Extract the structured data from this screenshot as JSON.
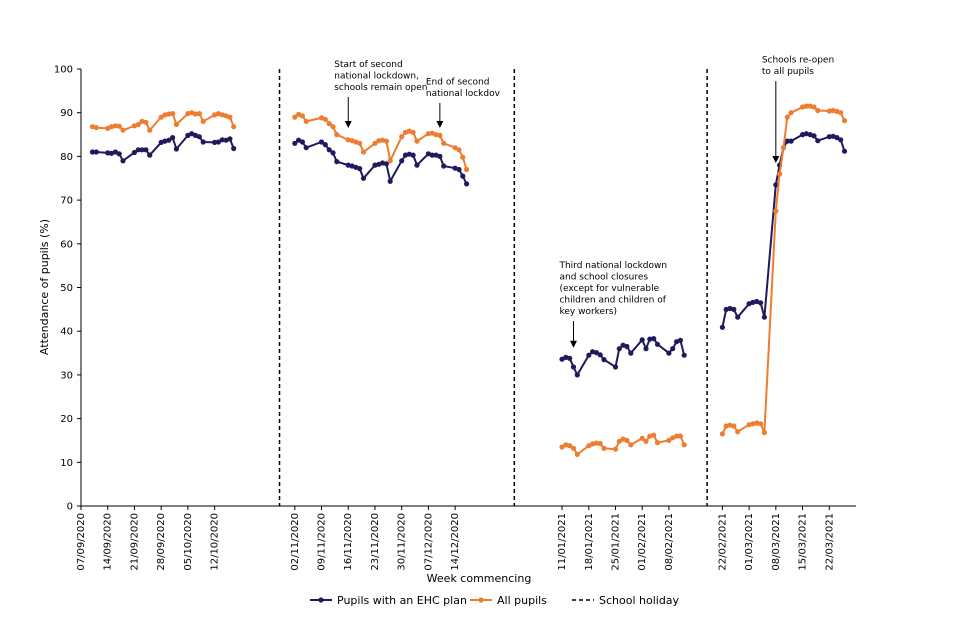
{
  "chart_data": {
    "type": "line",
    "xlabel": "Week commencing",
    "ylabel": "Attendance of pupils (%)",
    "ylim": [
      0,
      100
    ],
    "yticks": [
      0,
      10,
      20,
      30,
      40,
      50,
      60,
      70,
      80,
      90,
      100
    ],
    "x_start_date": "07/09/2020",
    "x_end_date": "29/03/2021",
    "xtick_labels": [
      "07/09/2020",
      "14/09/2020",
      "21/09/2020",
      "28/09/2020",
      "05/10/2020",
      "12/10/2020",
      "02/11/2020",
      "09/11/2020",
      "16/11/2020",
      "23/11/2020",
      "30/11/2020",
      "07/12/2020",
      "14/12/2020",
      "11/01/2021",
      "18/01/2021",
      "25/01/2021",
      "01/02/2021",
      "08/02/2021",
      "22/02/2021",
      "01/03/2021",
      "08/03/2021",
      "15/03/2021",
      "22/03/2021"
    ],
    "legend_position": "bottom",
    "grid": false,
    "colors": {
      "ehc": "#1f1a5e",
      "all": "#ee7d31",
      "holiday": "#000000"
    },
    "legend": [
      {
        "key": "ehc",
        "label": "Pupils with an EHC plan"
      },
      {
        "key": "all",
        "label": "All pupils"
      },
      {
        "key": "holiday",
        "label": "School holiday"
      }
    ],
    "school_holidays": [
      "26/10/2020 - 01/11/2020",
      "18/12/2020 - 10/01/2021",
      "15/02/2021 - 21/02/2021"
    ],
    "series": [
      {
        "name": "Pupils with an EHC plan",
        "key": "ehc",
        "segments": [
          [
            [
              "10/09/2020",
              81.0
            ],
            [
              "11/09/2020",
              81.0
            ],
            [
              "14/09/2020",
              80.8
            ],
            [
              "15/09/2020",
              80.7
            ],
            [
              "16/09/2020",
              81.0
            ],
            [
              "17/09/2020",
              80.6
            ],
            [
              "18/09/2020",
              79.0
            ],
            [
              "21/09/2020",
              80.9
            ],
            [
              "22/09/2020",
              81.5
            ],
            [
              "23/09/2020",
              81.5
            ],
            [
              "24/09/2020",
              81.5
            ],
            [
              "25/09/2020",
              80.3
            ],
            [
              "28/09/2020",
              83.2
            ],
            [
              "29/09/2020",
              83.5
            ],
            [
              "30/09/2020",
              83.7
            ],
            [
              "01/10/2020",
              84.3
            ],
            [
              "02/10/2020",
              81.7
            ],
            [
              "05/10/2020",
              84.8
            ],
            [
              "06/10/2020",
              85.2
            ],
            [
              "07/10/2020",
              84.8
            ],
            [
              "08/10/2020",
              84.5
            ],
            [
              "09/10/2020",
              83.3
            ],
            [
              "12/10/2020",
              83.2
            ],
            [
              "13/10/2020",
              83.3
            ],
            [
              "14/10/2020",
              83.8
            ],
            [
              "15/10/2020",
              83.7
            ],
            [
              "16/10/2020",
              84.0
            ],
            [
              "17/10/2020",
              81.8
            ]
          ],
          [
            [
              "02/11/2020",
              83.0
            ],
            [
              "03/11/2020",
              83.7
            ],
            [
              "04/11/2020",
              83.3
            ],
            [
              "05/11/2020",
              82.0
            ],
            [
              "09/11/2020",
              83.3
            ],
            [
              "10/11/2020",
              82.7
            ],
            [
              "11/11/2020",
              81.5
            ],
            [
              "12/11/2020",
              80.8
            ],
            [
              "13/11/2020",
              78.8
            ],
            [
              "16/11/2020",
              78.0
            ],
            [
              "17/11/2020",
              77.8
            ],
            [
              "18/11/2020",
              77.5
            ],
            [
              "19/11/2020",
              77.2
            ],
            [
              "20/11/2020",
              75.0
            ],
            [
              "23/11/2020",
              78.0
            ],
            [
              "24/11/2020",
              78.2
            ],
            [
              "25/11/2020",
              78.5
            ],
            [
              "26/11/2020",
              78.3
            ],
            [
              "27/11/2020",
              74.3
            ],
            [
              "30/11/2020",
              79.0
            ],
            [
              "01/12/2020",
              80.3
            ],
            [
              "02/12/2020",
              80.5
            ],
            [
              "03/12/2020",
              80.3
            ],
            [
              "04/12/2020",
              78.0
            ],
            [
              "07/12/2020",
              80.6
            ],
            [
              "08/12/2020",
              80.3
            ],
            [
              "09/12/2020",
              80.3
            ],
            [
              "10/12/2020",
              80.0
            ],
            [
              "11/12/2020",
              77.8
            ],
            [
              "14/12/2020",
              77.3
            ],
            [
              "15/12/2020",
              77.0
            ],
            [
              "16/12/2020",
              75.5
            ],
            [
              "17/12/2020",
              73.7
            ]
          ],
          [
            [
              "11/01/2021",
              33.6
            ],
            [
              "12/01/2021",
              34.0
            ],
            [
              "13/01/2021",
              33.8
            ],
            [
              "14/01/2021",
              31.8
            ],
            [
              "15/01/2021",
              30.0
            ],
            [
              "18/01/2021",
              34.5
            ],
            [
              "19/01/2021",
              35.3
            ],
            [
              "20/01/2021",
              35.1
            ],
            [
              "21/01/2021",
              34.6
            ],
            [
              "22/01/2021",
              33.5
            ],
            [
              "25/01/2021",
              31.8
            ],
            [
              "26/01/2021",
              36.0
            ],
            [
              "27/01/2021",
              36.8
            ],
            [
              "28/01/2021",
              36.5
            ],
            [
              "29/01/2021",
              35.0
            ],
            [
              "01/02/2021",
              38.0
            ],
            [
              "02/02/2021",
              36.0
            ],
            [
              "03/02/2021",
              38.2
            ],
            [
              "04/02/2021",
              38.3
            ],
            [
              "05/02/2021",
              37.0
            ],
            [
              "08/02/2021",
              35.0
            ],
            [
              "09/02/2021",
              36.0
            ],
            [
              "10/02/2021",
              37.6
            ],
            [
              "11/02/2021",
              37.9
            ],
            [
              "12/02/2021",
              34.5
            ]
          ],
          [
            [
              "22/02/2021",
              40.9
            ],
            [
              "23/02/2021",
              45.0
            ],
            [
              "24/02/2021",
              45.2
            ],
            [
              "25/02/2021",
              45.0
            ],
            [
              "26/02/2021",
              43.2
            ],
            [
              "01/03/2021",
              46.3
            ],
            [
              "02/03/2021",
              46.6
            ],
            [
              "03/03/2021",
              46.8
            ],
            [
              "04/03/2021",
              46.5
            ],
            [
              "05/03/2021",
              43.2
            ],
            [
              "08/03/2021",
              73.5
            ],
            [
              "09/03/2021",
              78.0
            ],
            [
              "10/03/2021",
              82.0
            ],
            [
              "11/03/2021",
              83.5
            ],
            [
              "12/03/2021",
              83.5
            ],
            [
              "15/03/2021",
              85.0
            ],
            [
              "16/03/2021",
              85.2
            ],
            [
              "17/03/2021",
              85.0
            ],
            [
              "18/03/2021",
              84.7
            ],
            [
              "19/03/2021",
              83.6
            ],
            [
              "22/03/2021",
              84.5
            ],
            [
              "23/03/2021",
              84.6
            ],
            [
              "24/03/2021",
              84.3
            ],
            [
              "25/03/2021",
              83.8
            ],
            [
              "26/03/2021",
              81.2
            ]
          ]
        ]
      },
      {
        "name": "All pupils",
        "key": "all",
        "segments": [
          [
            [
              "10/09/2020",
              86.8
            ],
            [
              "11/09/2020",
              86.6
            ],
            [
              "14/09/2020",
              86.4
            ],
            [
              "15/09/2020",
              86.8
            ],
            [
              "16/09/2020",
              87.0
            ],
            [
              "17/09/2020",
              86.9
            ],
            [
              "18/09/2020",
              86.0
            ],
            [
              "21/09/2020",
              87.0
            ],
            [
              "22/09/2020",
              87.3
            ],
            [
              "23/09/2020",
              88.0
            ],
            [
              "24/09/2020",
              87.8
            ],
            [
              "25/09/2020",
              86.0
            ],
            [
              "28/09/2020",
              89.0
            ],
            [
              "29/09/2020",
              89.5
            ],
            [
              "30/09/2020",
              89.7
            ],
            [
              "01/10/2020",
              89.8
            ],
            [
              "02/10/2020",
              87.3
            ],
            [
              "05/10/2020",
              89.8
            ],
            [
              "06/10/2020",
              90.0
            ],
            [
              "07/10/2020",
              89.7
            ],
            [
              "08/10/2020",
              89.8
            ],
            [
              "09/10/2020",
              88.0
            ],
            [
              "12/10/2020",
              89.5
            ],
            [
              "13/10/2020",
              89.8
            ],
            [
              "14/10/2020",
              89.5
            ],
            [
              "15/10/2020",
              89.3
            ],
            [
              "16/10/2020",
              89.0
            ],
            [
              "17/10/2020",
              86.8
            ]
          ],
          [
            [
              "02/11/2020",
              89.0
            ],
            [
              "03/11/2020",
              89.6
            ],
            [
              "04/11/2020",
              89.3
            ],
            [
              "05/11/2020",
              88.0
            ],
            [
              "09/11/2020",
              88.8
            ],
            [
              "10/11/2020",
              88.5
            ],
            [
              "11/11/2020",
              87.5
            ],
            [
              "12/11/2020",
              86.8
            ],
            [
              "13/11/2020",
              85.0
            ],
            [
              "16/11/2020",
              83.8
            ],
            [
              "17/11/2020",
              83.6
            ],
            [
              "18/11/2020",
              83.3
            ],
            [
              "19/11/2020",
              83.0
            ],
            [
              "20/11/2020",
              81.0
            ],
            [
              "23/11/2020",
              83.0
            ],
            [
              "24/11/2020",
              83.6
            ],
            [
              "25/11/2020",
              83.7
            ],
            [
              "26/11/2020",
              83.5
            ],
            [
              "27/11/2020",
              79.0
            ],
            [
              "30/11/2020",
              84.5
            ],
            [
              "01/12/2020",
              85.5
            ],
            [
              "02/12/2020",
              85.8
            ],
            [
              "03/12/2020",
              85.5
            ],
            [
              "04/12/2020",
              83.5
            ],
            [
              "07/12/2020",
              85.2
            ],
            [
              "08/12/2020",
              85.3
            ],
            [
              "09/12/2020",
              85.0
            ],
            [
              "10/12/2020",
              84.8
            ],
            [
              "11/12/2020",
              83.0
            ],
            [
              "14/12/2020",
              82.0
            ],
            [
              "15/12/2020",
              81.5
            ],
            [
              "16/12/2020",
              79.8
            ],
            [
              "17/12/2020",
              77.0
            ]
          ],
          [
            [
              "11/01/2021",
              13.5
            ],
            [
              "12/01/2021",
              14.0
            ],
            [
              "13/01/2021",
              13.8
            ],
            [
              "14/01/2021",
              13.2
            ],
            [
              "15/01/2021",
              11.8
            ],
            [
              "18/01/2021",
              13.8
            ],
            [
              "19/01/2021",
              14.2
            ],
            [
              "20/01/2021",
              14.4
            ],
            [
              "21/01/2021",
              14.3
            ],
            [
              "22/01/2021",
              13.2
            ],
            [
              "25/01/2021",
              13.0
            ],
            [
              "26/01/2021",
              14.8
            ],
            [
              "27/01/2021",
              15.3
            ],
            [
              "28/01/2021",
              15.0
            ],
            [
              "29/01/2021",
              14.0
            ],
            [
              "01/02/2021",
              15.5
            ],
            [
              "02/02/2021",
              14.8
            ],
            [
              "03/02/2021",
              16.0
            ],
            [
              "04/02/2021",
              16.2
            ],
            [
              "05/02/2021",
              14.5
            ],
            [
              "08/02/2021",
              15.0
            ],
            [
              "09/02/2021",
              15.6
            ],
            [
              "10/02/2021",
              16.0
            ],
            [
              "11/02/2021",
              16.0
            ],
            [
              "12/02/2021",
              14.0
            ]
          ],
          [
            [
              "22/02/2021",
              16.5
            ],
            [
              "23/02/2021",
              18.3
            ],
            [
              "24/02/2021",
              18.5
            ],
            [
              "25/02/2021",
              18.3
            ],
            [
              "26/02/2021",
              17.0
            ],
            [
              "01/03/2021",
              18.6
            ],
            [
              "02/03/2021",
              18.8
            ],
            [
              "03/03/2021",
              19.0
            ],
            [
              "04/03/2021",
              18.8
            ],
            [
              "05/03/2021",
              16.8
            ],
            [
              "08/03/2021",
              67.5
            ],
            [
              "09/03/2021",
              76.0
            ],
            [
              "10/03/2021",
              82.0
            ],
            [
              "11/03/2021",
              89.0
            ],
            [
              "12/03/2021",
              90.0
            ],
            [
              "15/03/2021",
              91.3
            ],
            [
              "16/03/2021",
              91.5
            ],
            [
              "17/03/2021",
              91.5
            ],
            [
              "18/03/2021",
              91.3
            ],
            [
              "19/03/2021",
              90.5
            ],
            [
              "22/03/2021",
              90.4
            ],
            [
              "23/03/2021",
              90.5
            ],
            [
              "24/03/2021",
              90.3
            ],
            [
              "25/03/2021",
              90.0
            ],
            [
              "26/03/2021",
              88.2
            ]
          ]
        ]
      }
    ],
    "annotations": [
      {
        "lines": [
          "Start of second",
          "national lockdown,",
          "schools remain open"
        ],
        "date": "16/11/2020",
        "arrow_y": 86.5,
        "text_y": 100
      },
      {
        "lines": [
          "End of second",
          "national lockdov"
        ],
        "date": "10/12/2020",
        "arrow_y": 86.5,
        "text_y": 96
      },
      {
        "lines": [
          "Third national lockdown",
          "and school closures",
          "(except for vulnerable",
          "children and children of",
          "key workers)"
        ],
        "date": "14/01/2021",
        "arrow_y": 36.2,
        "text_y": 54
      },
      {
        "lines": [
          "Schools re-open",
          "to all pupils"
        ],
        "date": "08/03/2021",
        "arrow_y": 78.5,
        "text_y": 101
      }
    ]
  }
}
